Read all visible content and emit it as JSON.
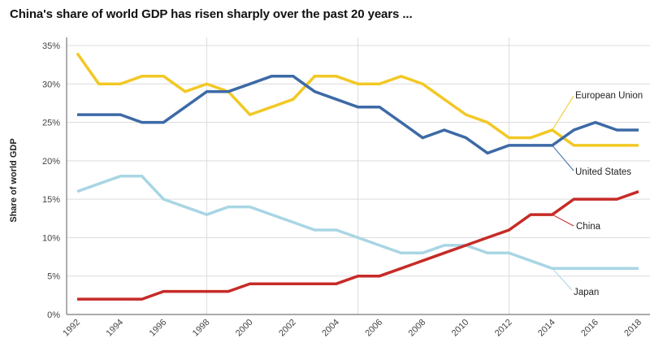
{
  "chart_data": {
    "type": "line",
    "title": "China's share of world GDP has risen sharply over the past 20 years ...",
    "xlabel": "",
    "ylabel": "Share of world GDP",
    "ylim": [
      0,
      35
    ],
    "yticks": [
      0,
      5,
      10,
      15,
      20,
      25,
      30,
      35
    ],
    "ytick_labels": [
      "0%",
      "5%",
      "10%",
      "15%",
      "20%",
      "25%",
      "30%",
      "35%"
    ],
    "x": [
      1992,
      1993,
      1994,
      1995,
      1996,
      1997,
      1998,
      1999,
      2000,
      2001,
      2002,
      2003,
      2004,
      2005,
      2006,
      2007,
      2008,
      2009,
      2010,
      2011,
      2012,
      2013,
      2014,
      2015,
      2016,
      2017,
      2018
    ],
    "xticks": [
      1992,
      1994,
      1996,
      1998,
      2000,
      2002,
      2004,
      2006,
      2008,
      2010,
      2012,
      2014,
      2016,
      2018
    ],
    "xtick_labels": [
      "1992",
      "1994",
      "1996",
      "1998",
      "2000",
      "2002",
      "2004",
      "2006",
      "2008",
      "2010",
      "2012",
      "2014",
      "2016",
      "2018"
    ],
    "vertical_gridlines": [
      1998,
      2005,
      2012
    ],
    "grid": true,
    "legend": "inline-annotations",
    "series": [
      {
        "name": "European Union",
        "color": "#f2c824",
        "values": [
          34,
          30,
          30,
          31,
          31,
          29,
          30,
          29,
          26,
          27,
          28,
          31,
          31,
          30,
          30,
          31,
          30,
          28,
          26,
          25,
          23,
          23,
          24,
          22,
          22,
          22,
          22
        ],
        "label_anchor_year": 2014
      },
      {
        "name": "United States",
        "color": "#3d6aa6",
        "values": [
          26,
          26,
          26,
          25,
          25,
          27,
          29,
          29,
          30,
          31,
          31,
          29,
          28,
          27,
          27,
          25,
          23,
          24,
          23,
          21,
          22,
          22,
          22,
          24,
          25,
          24,
          24
        ],
        "label_anchor_year": 2014
      },
      {
        "name": "China",
        "color": "#c62b27",
        "values": [
          2,
          2,
          2,
          2,
          3,
          3,
          3,
          3,
          4,
          4,
          4,
          4,
          4,
          5,
          5,
          6,
          7,
          8,
          9,
          10,
          11,
          13,
          13,
          15,
          15,
          15,
          16
        ],
        "label_anchor_year": 2014
      },
      {
        "name": "Japan",
        "color": "#a8d6e4",
        "values": [
          16,
          17,
          18,
          18,
          15,
          14,
          13,
          14,
          14,
          13,
          12,
          11,
          11,
          10,
          9,
          8,
          8,
          9,
          9,
          8,
          8,
          7,
          6,
          6,
          6,
          6,
          6
        ],
        "label_anchor_year": 2014
      }
    ]
  }
}
